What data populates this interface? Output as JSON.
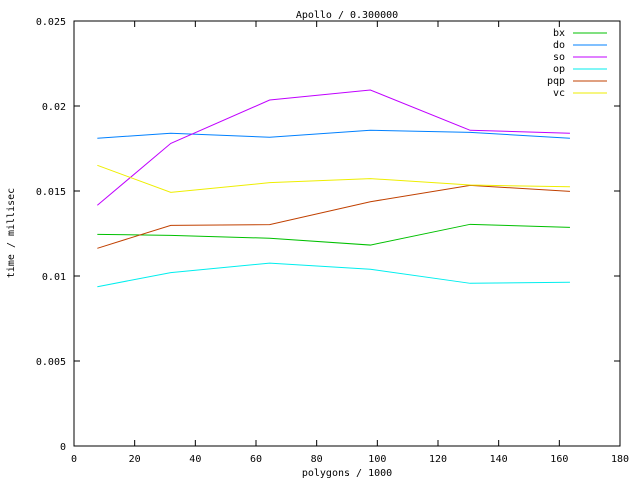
{
  "chart_data": {
    "type": "line",
    "title": "Apollo / 0.300000",
    "xlabel": "polygons / 1000",
    "ylabel": "time / millisec",
    "xlim": [
      0,
      180
    ],
    "ylim": [
      0,
      0.025
    ],
    "xticks": [
      "0",
      "20",
      "40",
      "60",
      "80",
      "100",
      "120",
      "140",
      "160",
      "180"
    ],
    "yticks": [
      "0",
      "0.005",
      "0.01",
      "0.015",
      "0.02",
      "0.025"
    ],
    "grid": false,
    "legend_position": "top-right",
    "x": [
      7.7,
      31.9,
      64.5,
      97.7,
      130.6,
      163.5
    ],
    "series": [
      {
        "name": "bx",
        "color": "#00c000",
        "values": [
          0.01245,
          0.01239,
          0.01222,
          0.01182,
          0.01304,
          0.01286
        ]
      },
      {
        "name": "do",
        "color": "#0080ff",
        "values": [
          0.0181,
          0.0184,
          0.01816,
          0.01857,
          0.01845,
          0.0181
        ]
      },
      {
        "name": "so",
        "color": "#c000ff",
        "values": [
          0.01416,
          0.0178,
          0.02035,
          0.02094,
          0.01857,
          0.0184
        ]
      },
      {
        "name": "op",
        "color": "#00eeee",
        "values": [
          0.00937,
          0.0102,
          0.01076,
          0.0104,
          0.00957,
          0.00963
        ]
      },
      {
        "name": "pqp",
        "color": "#c04000",
        "values": [
          0.01163,
          0.01298,
          0.01302,
          0.01437,
          0.01533,
          0.01498
        ]
      },
      {
        "name": "vc",
        "color": "#eeee00",
        "values": [
          0.01651,
          0.01492,
          0.01549,
          0.01573,
          0.01535,
          0.01525
        ]
      }
    ]
  }
}
